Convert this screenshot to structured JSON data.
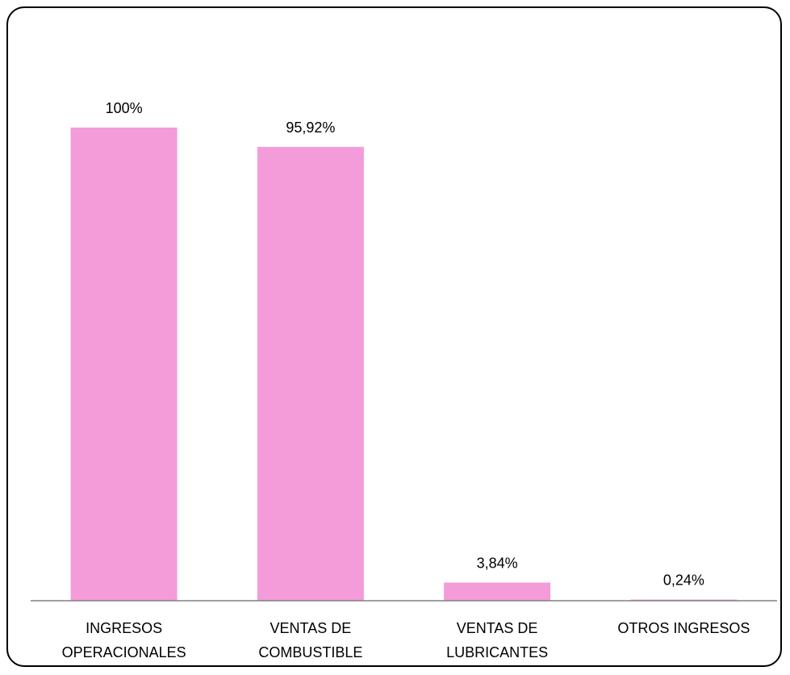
{
  "chart_data": {
    "type": "bar",
    "title": "",
    "xlabel": "",
    "ylabel": "",
    "categories": [
      [
        "INGRESOS",
        "OPERACIONALES"
      ],
      [
        "VENTAS DE",
        "COMBUSTIBLE"
      ],
      [
        "VENTAS DE",
        "LUBRICANTES"
      ],
      [
        "OTROS INGRESOS"
      ]
    ],
    "values": [
      100,
      95.92,
      3.84,
      0.24
    ],
    "value_labels": [
      "100%",
      "95,92%",
      "3,84%",
      "0,24%"
    ],
    "ylim": [
      0,
      100
    ],
    "grid": false,
    "legend": "none",
    "bar_color": "#F49CD9",
    "axis_color": "#808080"
  }
}
